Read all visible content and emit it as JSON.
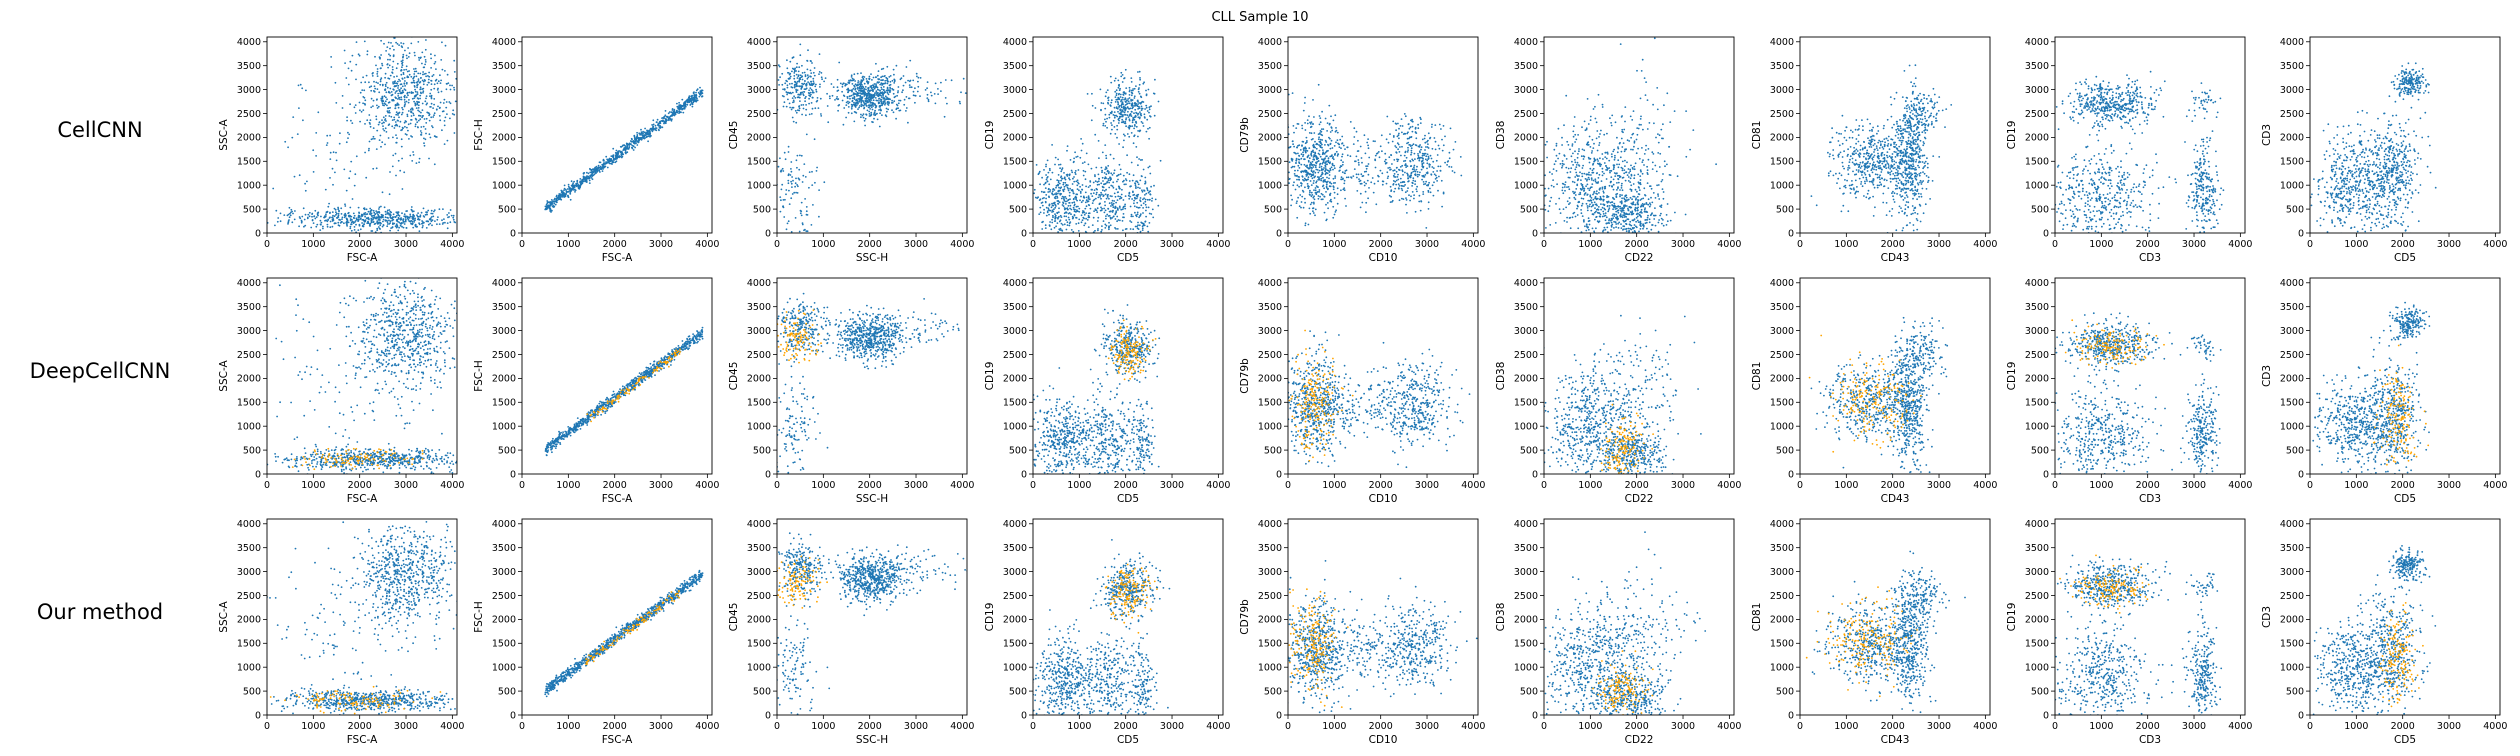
{
  "title": "CLL Sample 10",
  "colors": {
    "population": "#1f77b4",
    "selected": "#ffa500"
  },
  "rows": [
    {
      "label": "CellCNN"
    },
    {
      "label": "DeepCellCNN"
    },
    {
      "label": "Our method"
    }
  ],
  "panels": [
    {
      "xlabel": "FSC-A",
      "ylabel": "SSC-A",
      "xlim": [
        0,
        4100
      ],
      "ylim": [
        0,
        4100
      ],
      "xticks": [
        0,
        1000,
        2000,
        3000,
        4000
      ],
      "yticks": [
        0,
        500,
        1000,
        1500,
        2000,
        2500,
        3000,
        3500,
        4000
      ]
    },
    {
      "xlabel": "FSC-A",
      "ylabel": "FSC-H",
      "xlim": [
        0,
        4100
      ],
      "ylim": [
        0,
        4100
      ],
      "xticks": [
        0,
        1000,
        2000,
        3000,
        4000
      ],
      "yticks": [
        0,
        500,
        1000,
        1500,
        2000,
        2500,
        3000,
        3500,
        4000
      ]
    },
    {
      "xlabel": "SSC-H",
      "ylabel": "CD45",
      "xlim": [
        0,
        4100
      ],
      "ylim": [
        0,
        4100
      ],
      "xticks": [
        0,
        1000,
        2000,
        3000,
        4000
      ],
      "yticks": [
        0,
        500,
        1000,
        1500,
        2000,
        2500,
        3000,
        3500,
        4000
      ]
    },
    {
      "xlabel": "CD5",
      "ylabel": "CD19",
      "xlim": [
        0,
        4100
      ],
      "ylim": [
        0,
        4100
      ],
      "xticks": [
        0,
        1000,
        2000,
        3000,
        4000
      ],
      "yticks": [
        0,
        500,
        1000,
        1500,
        2000,
        2500,
        3000,
        3500,
        4000
      ]
    },
    {
      "xlabel": "CD10",
      "ylabel": "CD79b",
      "xlim": [
        0,
        4100
      ],
      "ylim": [
        0,
        4100
      ],
      "xticks": [
        0,
        1000,
        2000,
        3000,
        4000
      ],
      "yticks": [
        0,
        500,
        1000,
        1500,
        2000,
        2500,
        3000,
        3500,
        4000
      ]
    },
    {
      "xlabel": "CD22",
      "ylabel": "CD38",
      "xlim": [
        0,
        4100
      ],
      "ylim": [
        0,
        4100
      ],
      "xticks": [
        0,
        1000,
        2000,
        3000,
        4000
      ],
      "yticks": [
        0,
        500,
        1000,
        1500,
        2000,
        2500,
        3000,
        3500,
        4000
      ]
    },
    {
      "xlabel": "CD43",
      "ylabel": "CD81",
      "xlim": [
        0,
        4100
      ],
      "ylim": [
        0,
        4100
      ],
      "xticks": [
        0,
        1000,
        2000,
        3000,
        4000
      ],
      "yticks": [
        0,
        500,
        1000,
        1500,
        2000,
        2500,
        3000,
        3500,
        4000
      ]
    },
    {
      "xlabel": "CD3",
      "ylabel": "CD19",
      "xlim": [
        0,
        4100
      ],
      "ylim": [
        0,
        4100
      ],
      "xticks": [
        0,
        1000,
        2000,
        3000,
        4000
      ],
      "yticks": [
        0,
        500,
        1000,
        1500,
        2000,
        2500,
        3000,
        3500,
        4000
      ]
    },
    {
      "xlabel": "CD5",
      "ylabel": "CD3",
      "xlim": [
        0,
        4100
      ],
      "ylim": [
        0,
        4100
      ],
      "xticks": [
        0,
        1000,
        2000,
        3000,
        4000
      ],
      "yticks": [
        0,
        500,
        1000,
        1500,
        2000,
        2500,
        3000,
        3500,
        4000
      ]
    }
  ],
  "chart_data": {
    "type": "scatter",
    "title": "CLL Sample 10",
    "series": [
      {
        "name": "",
        "color": "#1f77b4",
        "clusters_by_panel": [
          [
            {
              "x": 3000,
              "y": 2900,
              "sx": 520,
              "sy": 550,
              "n": 650
            },
            {
              "x": 2300,
              "y": 300,
              "sx": 1000,
              "sy": 110,
              "n": 600
            },
            {
              "x": 1600,
              "y": 1800,
              "sx": 900,
              "sy": 1000,
              "n": 120
            }
          ],
          [
            {
              "x": 2200,
              "y": 1700,
              "sx": 1000,
              "sy": 60,
              "n": 900,
              "line": [
                0.72,
                150
              ]
            }
          ],
          [
            {
              "x": 2000,
              "y": 2850,
              "sx": 350,
              "sy": 230,
              "n": 550
            },
            {
              "x": 550,
              "y": 3050,
              "sx": 250,
              "sy": 300,
              "n": 250
            },
            {
              "x": 350,
              "y": 900,
              "sx": 250,
              "sy": 550,
              "n": 120
            },
            {
              "x": 2800,
              "y": 3050,
              "sx": 700,
              "sy": 200,
              "n": 100
            }
          ],
          [
            {
              "x": 2050,
              "y": 2650,
              "sx": 270,
              "sy": 300,
              "n": 350
            },
            {
              "x": 700,
              "y": 700,
              "sx": 350,
              "sy": 450,
              "n": 450
            },
            {
              "x": 1650,
              "y": 700,
              "sx": 250,
              "sy": 450,
              "n": 250
            },
            {
              "x": 2350,
              "y": 600,
              "sx": 150,
              "sy": 450,
              "n": 150
            }
          ],
          [
            {
              "x": 600,
              "y": 1400,
              "sx": 350,
              "sy": 500,
              "n": 600
            },
            {
              "x": 2700,
              "y": 1450,
              "sx": 400,
              "sy": 450,
              "n": 400
            },
            {
              "x": 1600,
              "y": 1400,
              "sx": 300,
              "sy": 300,
              "n": 80
            }
          ],
          [
            {
              "x": 1100,
              "y": 1000,
              "sx": 550,
              "sy": 650,
              "n": 650
            },
            {
              "x": 1900,
              "y": 400,
              "sx": 350,
              "sy": 250,
              "n": 300
            },
            {
              "x": 2200,
              "y": 1800,
              "sx": 450,
              "sy": 700,
              "n": 120
            }
          ],
          [
            {
              "x": 1500,
              "y": 1500,
              "sx": 450,
              "sy": 400,
              "n": 450
            },
            {
              "x": 2350,
              "y": 1500,
              "sx": 200,
              "sy": 650,
              "n": 450
            },
            {
              "x": 2600,
              "y": 2500,
              "sx": 250,
              "sy": 300,
              "n": 150
            }
          ],
          [
            {
              "x": 1200,
              "y": 2700,
              "sx": 450,
              "sy": 230,
              "n": 450
            },
            {
              "x": 1000,
              "y": 800,
              "sx": 550,
              "sy": 500,
              "n": 450
            },
            {
              "x": 3200,
              "y": 900,
              "sx": 150,
              "sy": 500,
              "n": 250
            },
            {
              "x": 3200,
              "y": 2700,
              "sx": 150,
              "sy": 150,
              "n": 40
            }
          ],
          [
            {
              "x": 1000,
              "y": 1000,
              "sx": 450,
              "sy": 500,
              "n": 500
            },
            {
              "x": 1800,
              "y": 1300,
              "sx": 300,
              "sy": 600,
              "n": 400
            },
            {
              "x": 2150,
              "y": 3150,
              "sx": 170,
              "sy": 150,
              "n": 200
            }
          ]
        ]
      },
      {
        "name": "",
        "color": "#ffa500",
        "rows": [
          1,
          2
        ],
        "clusters_by_panel": [
          [
            {
              "x": 1900,
              "y": 300,
              "sx": 700,
              "sy": 100,
              "n": 120
            }
          ],
          [
            {
              "x": 2400,
              "y": 1750,
              "sx": 600,
              "sy": 50,
              "n": 120,
              "line": [
                0.72,
                120
              ]
            }
          ],
          [
            {
              "x": 400,
              "y": 2800,
              "sx": 250,
              "sy": 250,
              "n": 120
            }
          ],
          [
            {
              "x": 2050,
              "y": 2600,
              "sx": 200,
              "sy": 250,
              "n": 150
            }
          ],
          [
            {
              "x": 550,
              "y": 1450,
              "sx": 250,
              "sy": 500,
              "n": 200
            }
          ],
          [
            {
              "x": 1700,
              "y": 500,
              "sx": 250,
              "sy": 300,
              "n": 150
            }
          ],
          [
            {
              "x": 1500,
              "y": 1600,
              "sx": 400,
              "sy": 400,
              "n": 200
            }
          ],
          [
            {
              "x": 1200,
              "y": 2650,
              "sx": 400,
              "sy": 200,
              "n": 150
            }
          ],
          [
            {
              "x": 1900,
              "y": 1200,
              "sx": 200,
              "sy": 500,
              "n": 160
            }
          ]
        ]
      }
    ],
    "xlim": [
      0,
      4100
    ],
    "ylim": [
      0,
      4100
    ],
    "grid": false
  }
}
